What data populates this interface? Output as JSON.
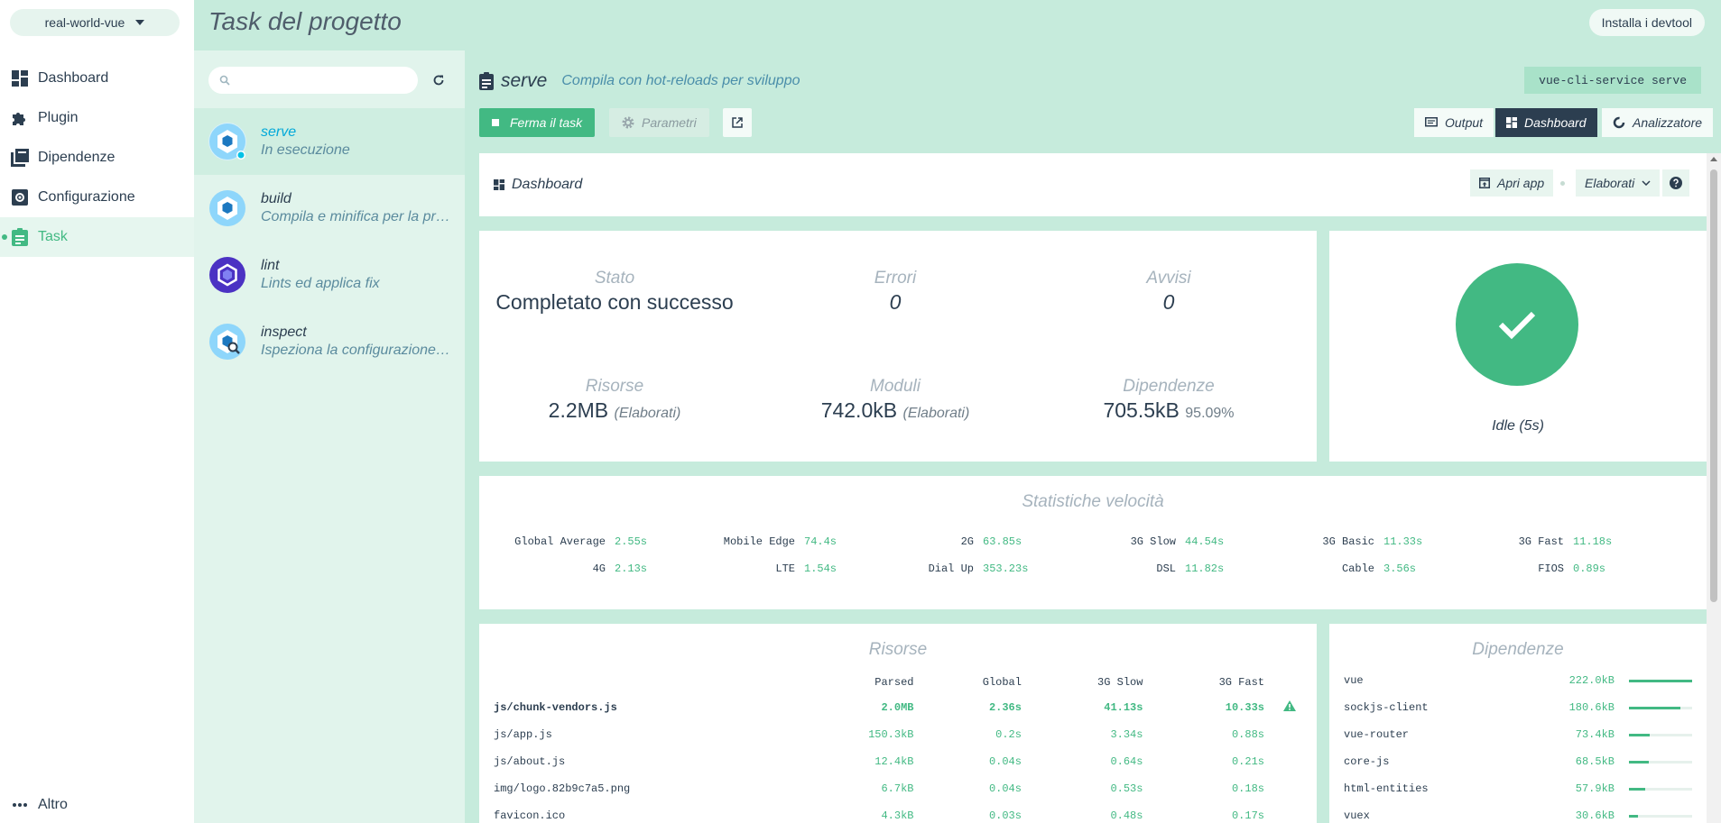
{
  "nav": {
    "project": "real-world-vue",
    "items": [
      {
        "label": "Dashboard",
        "icon": "dashboard-icon"
      },
      {
        "label": "Plugin",
        "icon": "puzzle-icon"
      },
      {
        "label": "Dipendenze",
        "icon": "library-icon"
      },
      {
        "label": "Configurazione",
        "icon": "settings-icon"
      },
      {
        "label": "Task",
        "icon": "assignment-icon"
      }
    ],
    "more": "Altro"
  },
  "header": {
    "title": "Task del progetto",
    "devtool_button": "Installa i devtool"
  },
  "tasks": [
    {
      "name": "serve",
      "desc": "In esecuzione"
    },
    {
      "name": "build",
      "desc": "Compila e minifica per la produzione"
    },
    {
      "name": "lint",
      "desc": "Lints ed applica fix"
    },
    {
      "name": "inspect",
      "desc": "Ispeziona la configurazione webpack"
    }
  ],
  "task": {
    "name": "serve",
    "description": "Compila con hot-reloads per sviluppo",
    "command": "vue-cli-service serve",
    "stop_label": "Ferma il task",
    "params_label": "Parametri",
    "views": {
      "output": "Output",
      "dashboard": "Dashboard",
      "analyzer": "Analizzatore"
    }
  },
  "dashboard": {
    "title": "Dashboard",
    "open_app": "Apri app",
    "mode": "Elaborati",
    "stats": {
      "status_label": "Stato",
      "status_value": "Completato con successo",
      "errors_label": "Errori",
      "errors_value": "0",
      "warnings_label": "Avvisi",
      "warnings_value": "0",
      "assets_label": "Risorse",
      "assets_value": "2.2MB",
      "assets_note": "(Elaborati)",
      "modules_label": "Moduli",
      "modules_value": "742.0kB",
      "modules_note": "(Elaborati)",
      "deps_label": "Dipendenze",
      "deps_value": "705.5kB",
      "deps_note": "95.09%"
    },
    "status": "Idle (5s)",
    "speed_title": "Statistiche velocità",
    "speed": [
      {
        "name": "Global Average",
        "value": "2.55s"
      },
      {
        "name": "Mobile Edge",
        "value": "74.4s"
      },
      {
        "name": "2G",
        "value": "63.85s"
      },
      {
        "name": "3G Slow",
        "value": "44.54s"
      },
      {
        "name": "3G Basic",
        "value": "11.33s"
      },
      {
        "name": "3G Fast",
        "value": "11.18s"
      },
      {
        "name": "4G",
        "value": "2.13s"
      },
      {
        "name": "LTE",
        "value": "1.54s"
      },
      {
        "name": "Dial Up",
        "value": "353.23s"
      },
      {
        "name": "DSL",
        "value": "11.82s"
      },
      {
        "name": "Cable",
        "value": "3.56s"
      },
      {
        "name": "FIOS",
        "value": "0.89s"
      }
    ],
    "assets_title": "Risorse",
    "assets_columns": [
      "Parsed",
      "Global",
      "3G Slow",
      "3G Fast"
    ],
    "assets": [
      {
        "name": "js/chunk-vendors.js",
        "parsed": "2.0MB",
        "global": "2.36s",
        "slow": "41.13s",
        "fast": "10.33s",
        "big": true
      },
      {
        "name": "js/app.js",
        "parsed": "150.3kB",
        "global": "0.2s",
        "slow": "3.34s",
        "fast": "0.88s"
      },
      {
        "name": "js/about.js",
        "parsed": "12.4kB",
        "global": "0.04s",
        "slow": "0.64s",
        "fast": "0.21s"
      },
      {
        "name": "img/logo.82b9c7a5.png",
        "parsed": "6.7kB",
        "global": "0.04s",
        "slow": "0.53s",
        "fast": "0.18s"
      },
      {
        "name": "favicon.ico",
        "parsed": "4.3kB",
        "global": "0.03s",
        "slow": "0.48s",
        "fast": "0.17s"
      }
    ],
    "deps_title": "Dipendenze",
    "deps": [
      {
        "name": "vue",
        "size": "222.0kB",
        "ratio": 1.0
      },
      {
        "name": "sockjs-client",
        "size": "180.6kB",
        "ratio": 0.81
      },
      {
        "name": "vue-router",
        "size": "73.4kB",
        "ratio": 0.33
      },
      {
        "name": "core-js",
        "size": "68.5kB",
        "ratio": 0.31
      },
      {
        "name": "html-entities",
        "size": "57.9kB",
        "ratio": 0.26
      },
      {
        "name": "vuex",
        "size": "30.6kB",
        "ratio": 0.14
      }
    ]
  },
  "colors": {
    "accent": "#42b983",
    "dark": "#2c3e50",
    "background": "#c6ebdc"
  }
}
